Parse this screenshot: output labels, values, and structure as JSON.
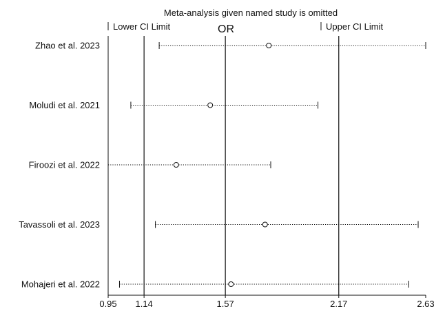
{
  "chart_data": {
    "type": "forest",
    "title": "Meta-analysis given named study is omitted",
    "effect_label": "OR",
    "legend": {
      "lower": "Lower CI Limit",
      "upper": "Upper CI Limit"
    },
    "x_ticks": [
      "0.95",
      "1.14",
      "1.57",
      "2.17",
      "2.63"
    ],
    "reference_lines": [
      1.14,
      1.57,
      2.17
    ],
    "xlim": [
      0.95,
      2.63
    ],
    "studies": [
      {
        "name": "Zhao et al. 2023",
        "lower": 1.22,
        "estimate": 1.8,
        "upper": 2.63
      },
      {
        "name": "Moludi et al. 2021",
        "lower": 1.07,
        "estimate": 1.49,
        "upper": 2.06
      },
      {
        "name": "Firoozi et al. 2022",
        "lower": 0.95,
        "estimate": 1.31,
        "upper": 1.81
      },
      {
        "name": "Tavassoli et al. 2023",
        "lower": 1.2,
        "estimate": 1.78,
        "upper": 2.59
      },
      {
        "name": "Mohajeri et al. 2022",
        "lower": 1.01,
        "estimate": 1.6,
        "upper": 2.54
      }
    ]
  }
}
